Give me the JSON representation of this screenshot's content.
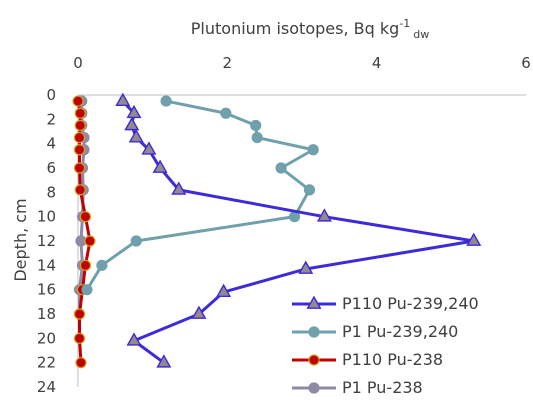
{
  "chart_data": {
    "type": "line",
    "title": "Plutonium isotopes, Bq kg",
    "title_sup": "-1",
    "title_sub": "dw",
    "ylabel": "Depth, cm",
    "x_axis_position": "top",
    "y_inverted": true,
    "xlim": [
      0,
      6
    ],
    "ylim": [
      0,
      24
    ],
    "xticks": [
      "0",
      "2",
      "4",
      "6"
    ],
    "yticks": [
      "0",
      "2",
      "4",
      "6",
      "8",
      "10",
      "12",
      "14",
      "16",
      "18",
      "20",
      "22",
      "24"
    ],
    "grid": false,
    "legend_position": "bottom-right",
    "series": [
      {
        "name": "P110 Pu-239,240",
        "color": "#3C2BD8",
        "marker": "triangle",
        "marker_fill": "#948A8E",
        "points": [
          [
            0.6,
            0.5
          ],
          [
            0.75,
            1.5
          ],
          [
            0.72,
            2.5
          ],
          [
            0.78,
            3.5
          ],
          [
            0.95,
            4.5
          ],
          [
            1.1,
            6
          ],
          [
            1.35,
            7.8
          ],
          [
            3.3,
            10
          ],
          [
            5.3,
            12
          ],
          [
            3.05,
            14.3
          ],
          [
            1.95,
            16.2
          ],
          [
            1.62,
            18
          ],
          [
            0.75,
            20.2
          ],
          [
            1.15,
            22
          ]
        ]
      },
      {
        "name": "P1 Pu-239,240",
        "color": "#6FA0AB",
        "marker": "circle",
        "marker_fill": "#6FA0AB",
        "points": [
          [
            1.18,
            0.5
          ],
          [
            1.98,
            1.5
          ],
          [
            2.38,
            2.5
          ],
          [
            2.4,
            3.5
          ],
          [
            3.15,
            4.5
          ],
          [
            2.72,
            6
          ],
          [
            3.1,
            7.8
          ],
          [
            2.9,
            10
          ],
          [
            0.78,
            12
          ],
          [
            0.32,
            14
          ],
          [
            0.12,
            16
          ]
        ]
      },
      {
        "name": "P110 Pu-238",
        "color": "#C00000",
        "marker": "circle",
        "marker_fill": "#C00000",
        "marker_stroke": "#D4A017",
        "points": [
          [
            0.0,
            0.5
          ],
          [
            0.03,
            1.5
          ],
          [
            0.03,
            2.5
          ],
          [
            0.02,
            3.5
          ],
          [
            0.02,
            4.5
          ],
          [
            0.02,
            6
          ],
          [
            0.03,
            7.8
          ],
          [
            0.1,
            10
          ],
          [
            0.16,
            12
          ],
          [
            0.1,
            14
          ],
          [
            0.06,
            16
          ],
          [
            0.02,
            18
          ],
          [
            0.02,
            20
          ],
          [
            0.04,
            22
          ]
        ]
      },
      {
        "name": "P1 Pu-238",
        "color": "#8E8AA6",
        "marker": "circle",
        "marker_fill": "#8E8AA6",
        "points": [
          [
            0.05,
            0.5
          ],
          [
            0.05,
            1.5
          ],
          [
            0.05,
            2.5
          ],
          [
            0.08,
            3.5
          ],
          [
            0.08,
            4.5
          ],
          [
            0.06,
            6
          ],
          [
            0.07,
            7.8
          ],
          [
            0.06,
            10
          ],
          [
            0.04,
            12
          ],
          [
            0.06,
            14
          ],
          [
            0.02,
            16
          ],
          [
            0.02,
            18
          ]
        ]
      }
    ]
  }
}
